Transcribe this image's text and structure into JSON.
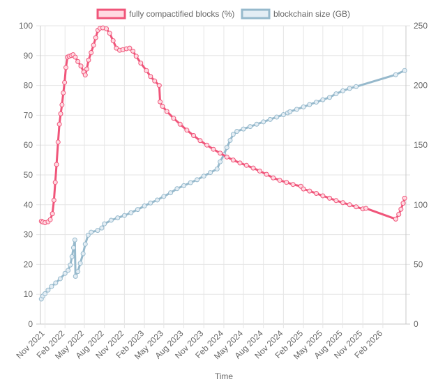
{
  "chart_data": {
    "type": "line",
    "xlabel": "Time",
    "legend_position": "top",
    "grid": true,
    "x_ticks": [
      "Nov 2021",
      "Feb 2022",
      "May 2022",
      "Aug 2022",
      "Nov 2022",
      "Feb 2023",
      "May 2023",
      "Aug 2023",
      "Nov 2023",
      "Feb 2024",
      "May 2024",
      "Aug 2024",
      "Nov 2024",
      "Feb 2025",
      "May 2025",
      "Aug 2025",
      "Nov 2025",
      "Feb 2026"
    ],
    "y_left": {
      "ylim": [
        0,
        100
      ],
      "ticks": [
        "0",
        "10",
        "20",
        "30",
        "40",
        "50",
        "60",
        "70",
        "80",
        "90",
        "100"
      ]
    },
    "y_right": {
      "ylim": [
        0,
        250
      ],
      "ticks": [
        "0",
        "50",
        "100",
        "150",
        "200",
        "250"
      ]
    },
    "series": [
      {
        "name": "fully compactified blocks (%)",
        "axis": "left",
        "color": "#f0557a",
        "fill": "#ffd9e1",
        "points": [
          [
            "2021-10-15",
            34.5
          ],
          [
            "2021-10-22",
            34.2
          ],
          [
            "2021-11-01",
            34.0
          ],
          [
            "2021-11-15",
            34.3
          ],
          [
            "2021-11-25",
            35.0
          ],
          [
            "2021-12-05",
            37.0
          ],
          [
            "2021-12-12",
            41.5
          ],
          [
            "2021-12-18",
            47.5
          ],
          [
            "2021-12-24",
            53.5
          ],
          [
            "2021-12-31",
            61.0
          ],
          [
            "2022-01-06",
            67.0
          ],
          [
            "2022-01-12",
            70.5
          ],
          [
            "2022-01-18",
            73.5
          ],
          [
            "2022-01-24",
            77.5
          ],
          [
            "2022-01-30",
            81.0
          ],
          [
            "2022-02-05",
            86.0
          ],
          [
            "2022-02-12",
            89.5
          ],
          [
            "2022-02-20",
            89.8
          ],
          [
            "2022-03-01",
            90.0
          ],
          [
            "2022-03-10",
            90.3
          ],
          [
            "2022-03-20",
            89.5
          ],
          [
            "2022-04-01",
            88.0
          ],
          [
            "2022-04-15",
            86.5
          ],
          [
            "2022-04-28",
            84.5
          ],
          [
            "2022-05-05",
            83.5
          ],
          [
            "2022-05-12",
            85.5
          ],
          [
            "2022-05-20",
            88.5
          ],
          [
            "2022-06-01",
            91.0
          ],
          [
            "2022-06-12",
            93.5
          ],
          [
            "2022-06-22",
            96.0
          ],
          [
            "2022-07-02",
            98.5
          ],
          [
            "2022-07-12",
            99.2
          ],
          [
            "2022-07-25",
            99.3
          ],
          [
            "2022-08-10",
            99.0
          ],
          [
            "2022-08-25",
            97.5
          ],
          [
            "2022-09-10",
            95.0
          ],
          [
            "2022-09-25",
            92.5
          ],
          [
            "2022-10-10",
            91.8
          ],
          [
            "2022-10-25",
            92.0
          ],
          [
            "2022-11-10",
            92.3
          ],
          [
            "2022-11-25",
            92.5
          ],
          [
            "2022-12-10",
            91.5
          ],
          [
            "2022-12-25",
            89.8
          ],
          [
            "2023-01-15",
            87.5
          ],
          [
            "2023-02-10",
            85.0
          ],
          [
            "2023-03-01",
            83.0
          ],
          [
            "2023-03-20",
            81.5
          ],
          [
            "2023-04-10",
            80.0
          ],
          [
            "2023-04-14",
            74.5
          ],
          [
            "2023-04-25",
            73.0
          ],
          [
            "2023-05-15",
            71.3
          ],
          [
            "2023-06-15",
            69.0
          ],
          [
            "2023-07-15",
            67.0
          ],
          [
            "2023-08-15",
            65.0
          ],
          [
            "2023-09-15",
            63.2
          ],
          [
            "2023-10-15",
            61.5
          ],
          [
            "2023-11-15",
            60.0
          ],
          [
            "2023-12-15",
            58.6
          ],
          [
            "2024-01-15",
            57.3
          ],
          [
            "2024-02-15",
            56.0
          ],
          [
            "2024-03-15",
            55.0
          ],
          [
            "2024-04-15",
            54.0
          ],
          [
            "2024-05-15",
            53.2
          ],
          [
            "2024-06-15",
            52.3
          ],
          [
            "2024-07-15",
            51.3
          ],
          [
            "2024-08-15",
            50.2
          ],
          [
            "2024-09-15",
            49.0
          ],
          [
            "2024-10-15",
            48.2
          ],
          [
            "2024-11-15",
            47.5
          ],
          [
            "2024-12-15",
            46.8
          ],
          [
            "2025-01-20",
            46.2
          ],
          [
            "2025-02-01",
            45.3
          ],
          [
            "2025-03-01",
            44.6
          ],
          [
            "2025-04-01",
            43.8
          ],
          [
            "2025-05-01",
            43.0
          ],
          [
            "2025-06-01",
            42.2
          ],
          [
            "2025-07-01",
            41.4
          ],
          [
            "2025-08-01",
            40.7
          ],
          [
            "2025-09-01",
            40.0
          ],
          [
            "2025-10-01",
            39.3
          ],
          [
            "2025-11-01",
            38.6
          ],
          [
            "2025-11-15",
            38.8
          ],
          [
            "2026-04-01",
            35.2
          ],
          [
            "2026-04-15",
            36.8
          ],
          [
            "2026-04-25",
            38.5
          ],
          [
            "2026-05-05",
            40.5
          ],
          [
            "2026-05-12",
            42.2
          ]
        ]
      },
      {
        "name": "blockchain size (GB)",
        "axis": "right",
        "color": "#96b9cc",
        "fill": "#e3edf4",
        "points": [
          [
            "2021-10-15",
            21.0
          ],
          [
            "2021-10-22",
            23.5
          ],
          [
            "2021-11-01",
            25.5
          ],
          [
            "2021-11-15",
            28.5
          ],
          [
            "2021-12-01",
            31.5
          ],
          [
            "2021-12-20",
            34.5
          ],
          [
            "2022-01-10",
            38.0
          ],
          [
            "2022-02-01",
            42.5
          ],
          [
            "2022-02-15",
            45.0
          ],
          [
            "2022-02-25",
            49.5
          ],
          [
            "2022-03-05",
            56.5
          ],
          [
            "2022-03-12",
            64.0
          ],
          [
            "2022-03-18",
            70.5
          ],
          [
            "2022-03-21",
            40.0
          ],
          [
            "2022-04-01",
            44.0
          ],
          [
            "2022-04-12",
            51.0
          ],
          [
            "2022-04-25",
            59.0
          ],
          [
            "2022-05-05",
            67.0
          ],
          [
            "2022-05-18",
            74.5
          ],
          [
            "2022-06-01",
            77.0
          ],
          [
            "2022-07-01",
            78.5
          ],
          [
            "2022-07-20",
            80.5
          ],
          [
            "2022-08-01",
            84.0
          ],
          [
            "2022-09-01",
            87.0
          ],
          [
            "2022-10-01",
            89.0
          ],
          [
            "2022-11-01",
            91.0
          ],
          [
            "2022-12-01",
            93.3
          ],
          [
            "2023-01-01",
            96.0
          ],
          [
            "2023-02-01",
            99.0
          ],
          [
            "2023-03-01",
            101.5
          ],
          [
            "2023-04-01",
            104.0
          ],
          [
            "2023-05-01",
            107.0
          ],
          [
            "2023-06-01",
            110.0
          ],
          [
            "2023-07-01",
            113.5
          ],
          [
            "2023-08-01",
            116.0
          ],
          [
            "2023-09-01",
            118.5
          ],
          [
            "2023-10-01",
            121.0
          ],
          [
            "2023-11-01",
            124.0
          ],
          [
            "2023-12-01",
            127.0
          ],
          [
            "2024-01-01",
            130.0
          ],
          [
            "2024-01-15",
            136.0
          ],
          [
            "2024-02-01",
            142.0
          ],
          [
            "2024-02-15",
            148.0
          ],
          [
            "2024-03-01",
            154.0
          ],
          [
            "2024-03-15",
            159.0
          ],
          [
            "2024-04-01",
            161.5
          ],
          [
            "2024-05-01",
            163.5
          ],
          [
            "2024-06-01",
            165.5
          ],
          [
            "2024-07-01",
            167.5
          ],
          [
            "2024-08-01",
            169.5
          ],
          [
            "2024-09-01",
            171.5
          ],
          [
            "2024-10-01",
            173.5
          ],
          [
            "2024-11-01",
            175.5
          ],
          [
            "2024-11-20",
            177.0
          ],
          [
            "2024-12-01",
            178.0
          ],
          [
            "2025-01-01",
            180.0
          ],
          [
            "2025-02-01",
            182.0
          ],
          [
            "2025-03-01",
            184.0
          ],
          [
            "2025-04-01",
            186.0
          ],
          [
            "2025-05-01",
            188.0
          ],
          [
            "2025-06-01",
            190.0
          ],
          [
            "2025-07-01",
            193.0
          ],
          [
            "2025-08-01",
            195.5
          ],
          [
            "2025-09-01",
            197.5
          ],
          [
            "2025-10-01",
            199.0
          ],
          [
            "2026-04-01",
            209.0
          ],
          [
            "2026-05-12",
            212.5
          ]
        ]
      }
    ]
  }
}
